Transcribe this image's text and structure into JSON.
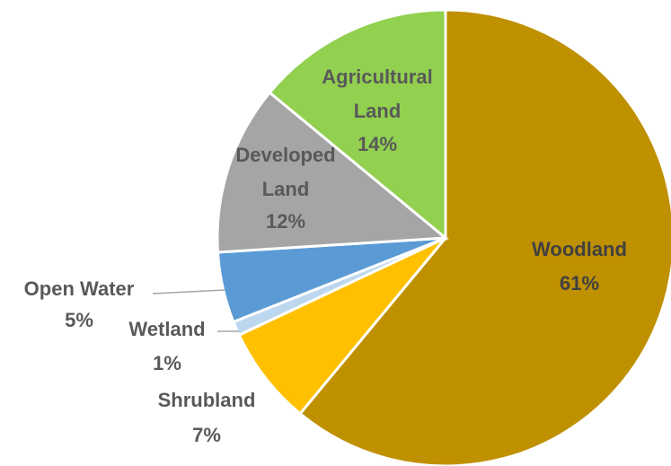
{
  "chart_data": {
    "type": "pie",
    "start_angle_deg": 0,
    "direction": "clockwise",
    "slices": [
      {
        "name": "Woodland",
        "value": 61,
        "pct_label": "61%",
        "color": "#BF9000"
      },
      {
        "name": "Shrubland",
        "value": 7,
        "pct_label": "7%",
        "color": "#FFC000"
      },
      {
        "name": "Wetland",
        "value": 1,
        "pct_label": "1%",
        "color": "#BDD7EE"
      },
      {
        "name": "Open Water",
        "value": 5,
        "pct_label": "5%",
        "color": "#5B9BD5"
      },
      {
        "name": "Developed Land",
        "value": 12,
        "pct_label": "12%",
        "color": "#A5A5A5"
      },
      {
        "name": "Agricultural Land",
        "value": 14,
        "pct_label": "14%",
        "color": "#92D050"
      }
    ]
  }
}
